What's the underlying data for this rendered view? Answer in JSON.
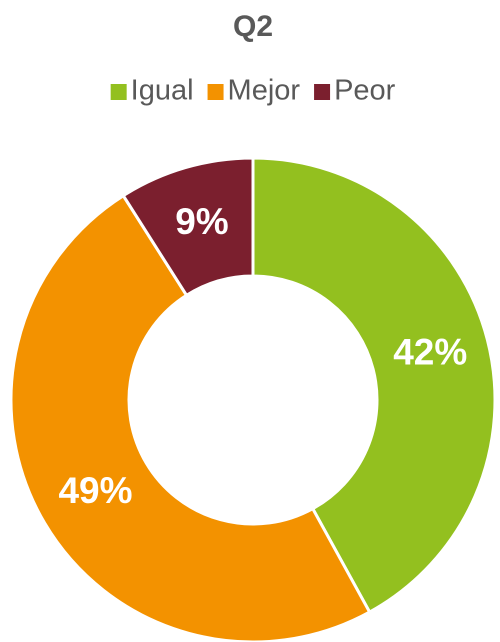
{
  "chart_data": {
    "type": "donut",
    "title": "Q2",
    "categories": [
      "Igual",
      "Mejor",
      "Peor"
    ],
    "values": [
      42,
      49,
      9
    ],
    "value_labels": [
      "42%",
      "49%",
      "9%"
    ],
    "colors": [
      "#93c01f",
      "#f39200",
      "#7b1f2e"
    ],
    "legend": "top"
  }
}
